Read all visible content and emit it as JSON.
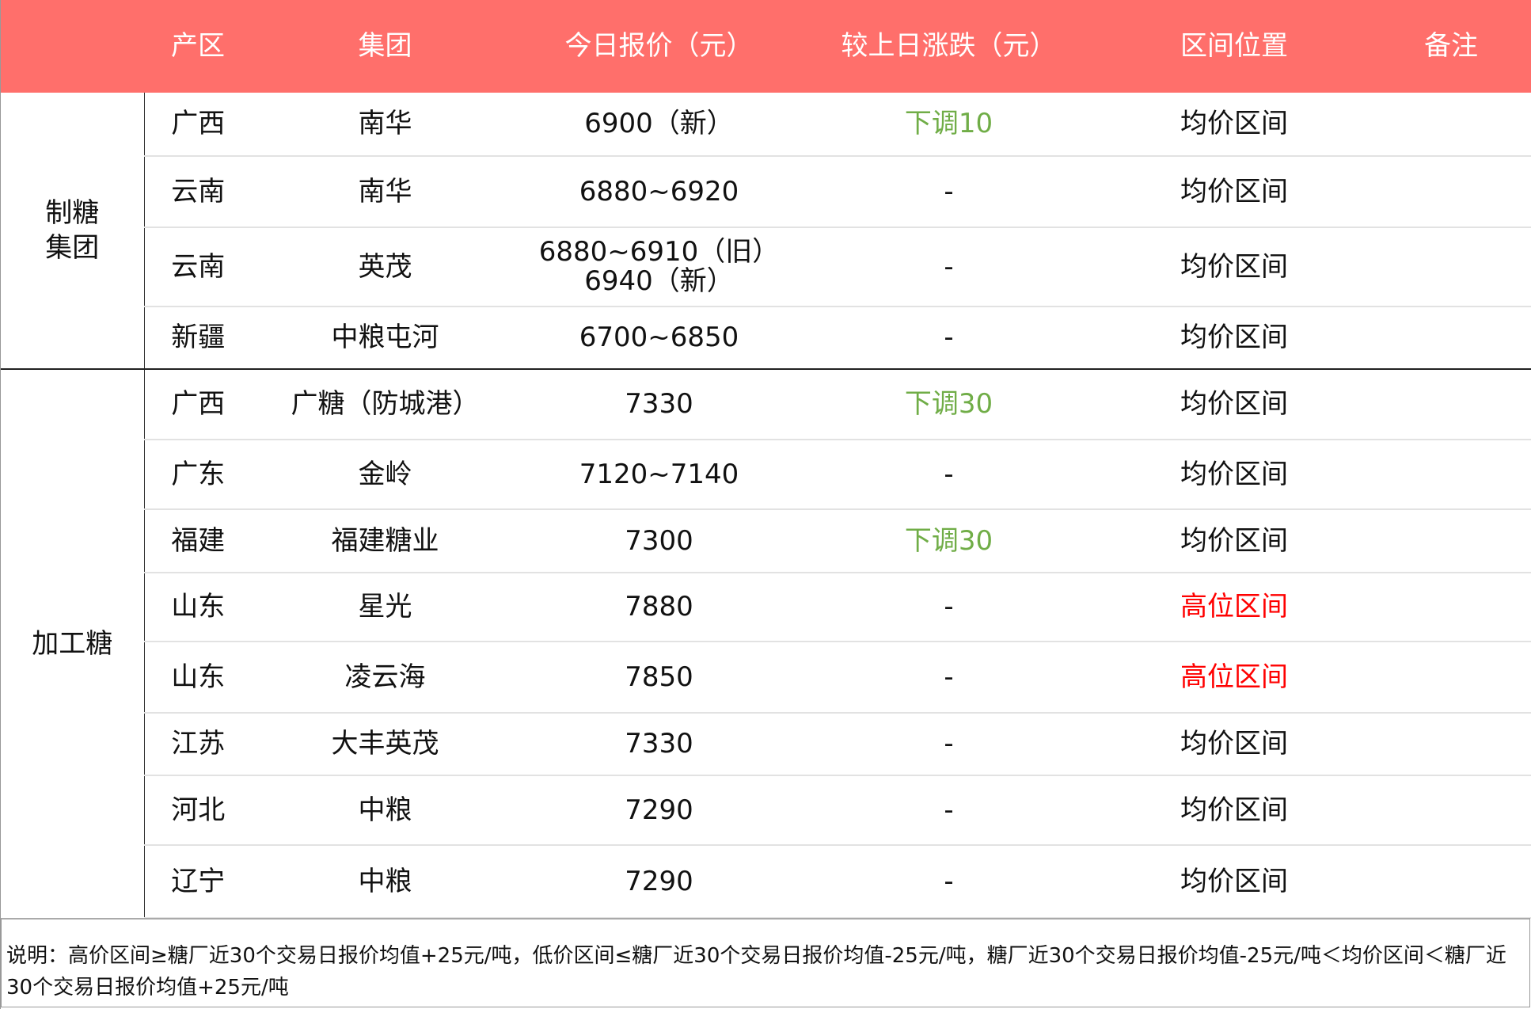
{
  "colors": {
    "header_bg": "#FF6F6B",
    "down": "#70AD47",
    "high": "#FF0000"
  },
  "headers": [
    "产区",
    "集团",
    "今日报价（元）",
    "较上日涨跌（元）",
    "区间位置",
    "备注"
  ],
  "groups": [
    {
      "label": "制糖\n集团",
      "rows": [
        {
          "region": "广西",
          "company": "南华",
          "price": "6900（新）",
          "change": "下调10",
          "position": "均价区间",
          "note": ""
        },
        {
          "region": "云南",
          "company": "南华",
          "price": "6880~6920",
          "change": "-",
          "position": "均价区间",
          "note": ""
        },
        {
          "region": "云南",
          "company": "英茂",
          "price": "6880~6910（旧）\n6940（新）",
          "change": "-",
          "position": "均价区间",
          "note": ""
        },
        {
          "region": "新疆",
          "company": "中粮屯河",
          "price": "6700~6850",
          "change": "-",
          "position": "均价区间",
          "note": ""
        }
      ]
    },
    {
      "label": "加工糖",
      "rows": [
        {
          "region": "广西",
          "company": "广糖（防城港）",
          "price": "7330",
          "change": "下调30",
          "position": "均价区间",
          "note": ""
        },
        {
          "region": "广东",
          "company": "金岭",
          "price": "7120~7140",
          "change": "-",
          "position": "均价区间",
          "note": ""
        },
        {
          "region": "福建",
          "company": "福建糖业",
          "price": "7300",
          "change": "下调30",
          "position": "均价区间",
          "note": ""
        },
        {
          "region": "山东",
          "company": "星光",
          "price": "7880",
          "change": "-",
          "position": "高位区间",
          "note": ""
        },
        {
          "region": "山东",
          "company": "凌云海",
          "price": "7850",
          "change": "-",
          "position": "高位区间",
          "note": ""
        },
        {
          "region": "江苏",
          "company": "大丰英茂",
          "price": "7330",
          "change": "-",
          "position": "均价区间",
          "note": ""
        },
        {
          "region": "河北",
          "company": "中粮",
          "price": "7290",
          "change": "-",
          "position": "均价区间",
          "note": ""
        },
        {
          "region": "辽宁",
          "company": "中粮",
          "price": "7290",
          "change": "-",
          "position": "均价区间",
          "note": ""
        }
      ]
    }
  ],
  "footer": "说明：高价区间≥糖厂近30个交易日报价均值+25元/吨，低价区间≤糖厂近30个交易日报价均值-25元/吨，糖厂近30个交易日报价均值-25元/吨＜均价区间＜糖厂近30个交易日报价均值+25元/吨"
}
